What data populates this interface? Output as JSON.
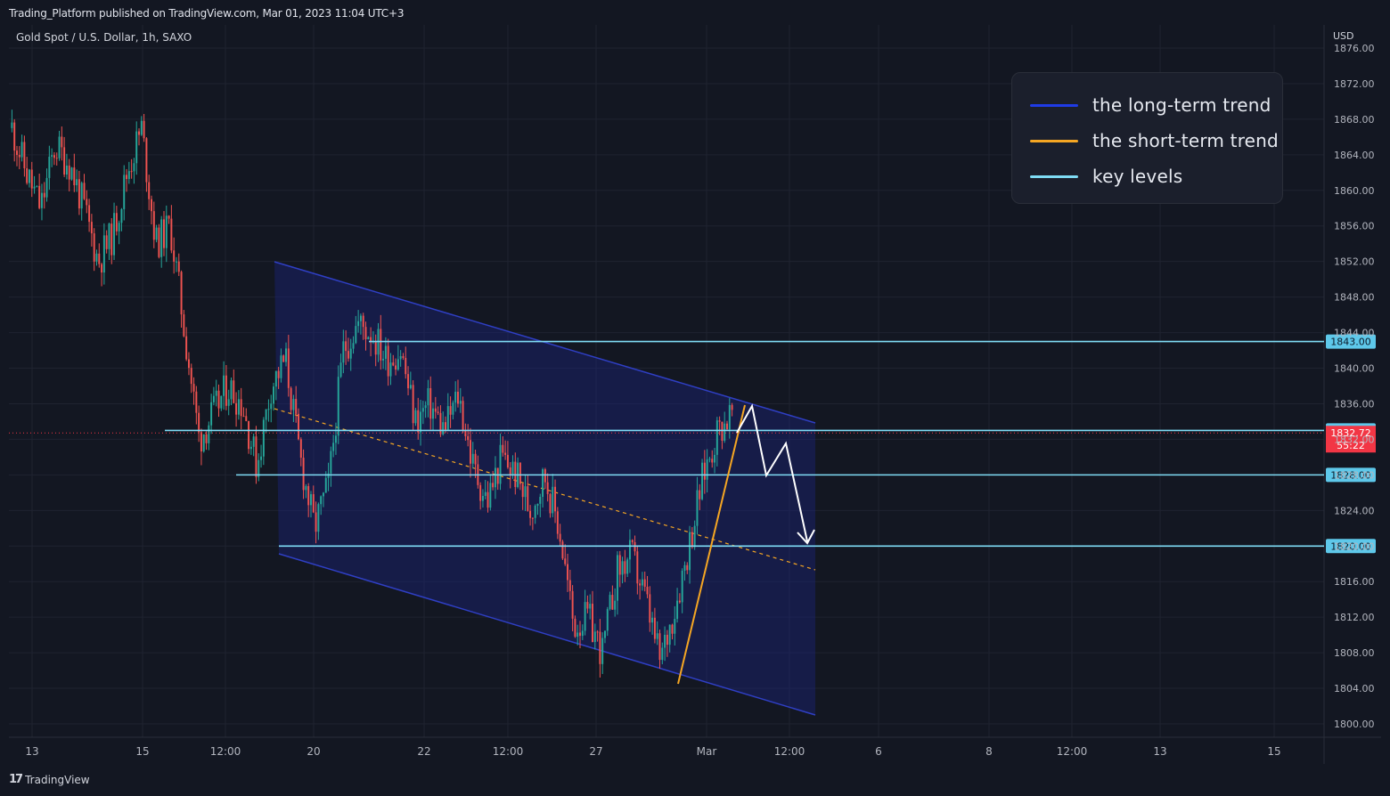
{
  "header": {
    "published": "Trading_Platform published on TradingView.com, Mar 01, 2023 11:04 UTC+3",
    "symbol": "Gold Spot / U.S. Dollar, 1h, SAXO",
    "currency": "USD"
  },
  "footer": {
    "brand": "TradingView",
    "logo_glyph": "17"
  },
  "legend": {
    "items": [
      {
        "label": "the long-term trend",
        "color": "#1f3be6"
      },
      {
        "label": "the short-term trend",
        "color": "#f5a623"
      },
      {
        "label": "key levels",
        "color": "#7fdcf5"
      }
    ]
  },
  "colors": {
    "up": "#26a69a",
    "down": "#ef5350",
    "channel_fill": "#1a237e",
    "channel_line": "#2f3fc4",
    "key_level": "#7fdcf5",
    "short_trend": "#f5a623",
    "projection": "#ffffff",
    "price_tag": "#f23645"
  },
  "chart_data": {
    "type": "candlestick",
    "symbol": "Gold Spot / U.S. Dollar",
    "interval": "1h",
    "currency": "USD",
    "ylim": [
      1800,
      1876
    ],
    "y_ticks": [
      1876,
      1872,
      1868,
      1864,
      1860,
      1856,
      1852,
      1848,
      1844,
      1840,
      1836,
      1832,
      1828,
      1824,
      1820,
      1816,
      1812,
      1808,
      1804,
      1800
    ],
    "x_ticks": [
      "13",
      "15",
      "12:00",
      "20",
      "22",
      "12:00",
      "27",
      "Mar",
      "12:00",
      "6",
      "8",
      "12:00",
      "13",
      "15"
    ],
    "key_levels": [
      1843.0,
      1833.0,
      1828.0,
      1820.0
    ],
    "key_level_labels": [
      "1843.00",
      "1833.00",
      "1828.00",
      "1820.00"
    ],
    "current_price": {
      "value": 1832.72,
      "label": "1832.72",
      "countdown": "55:22"
    },
    "price_path": [
      1867,
      1862,
      1858,
      1865,
      1863,
      1858,
      1852,
      1855,
      1862,
      1867,
      1854,
      1856,
      1844,
      1832,
      1835,
      1838,
      1836,
      1829,
      1838,
      1841,
      1830,
      1822,
      1827,
      1842,
      1845,
      1844,
      1841,
      1842,
      1834,
      1836,
      1833,
      1837,
      1829,
      1825,
      1830,
      1828,
      1824,
      1828,
      1822,
      1811,
      1812,
      1808,
      1817,
      1819,
      1814,
      1807,
      1813,
      1820,
      1828,
      1833,
      1835
    ]
  }
}
